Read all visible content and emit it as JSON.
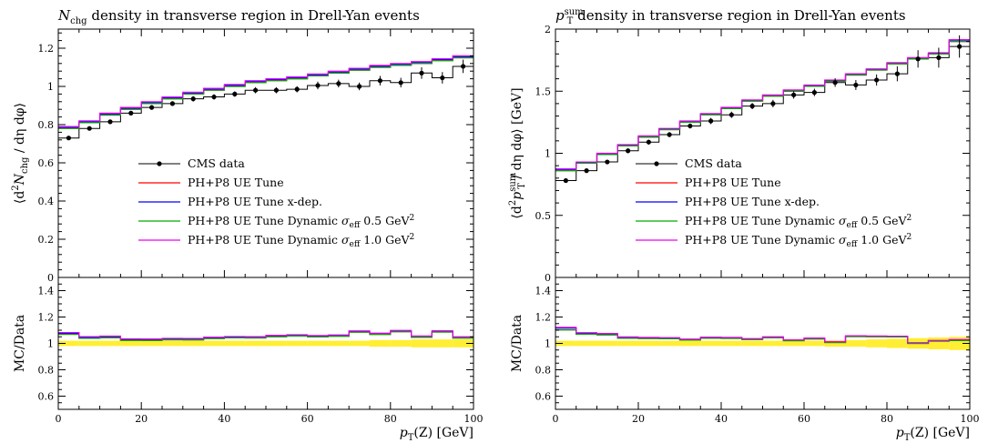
{
  "chart_data": [
    {
      "type": "line",
      "title": "N_chg density in transverse region in Drell-Yan events",
      "title_parts": {
        "base": "N",
        "sub": "chg",
        "rest": " density in transverse region in Drell-Yan events"
      },
      "xlabel": "pT(Z) [GeV]",
      "xlabel_parts": {
        "base": "p",
        "sub": "T",
        "rest": "(Z)  [GeV]"
      },
      "ylabel": "⟨d²N_chg / dη dφ⟩",
      "ylabel_parts": {
        "pre": "⟨d",
        "sup": "2",
        "mid": "N",
        "sub": "chg",
        "post": " / dη dφ⟩"
      },
      "ratio_ylabel": "MC/Data",
      "xlim": [
        0,
        100
      ],
      "ylim": [
        0,
        1.3
      ],
      "yticks": [
        0,
        0.2,
        0.4,
        0.6,
        0.8,
        1,
        1.2
      ],
      "ytick_labels": [
        "0",
        "0.2",
        "0.4",
        "0.6",
        "0.8",
        "1",
        "1.2"
      ],
      "ratio_ylim": [
        0.5,
        1.5
      ],
      "ratio_yticks": [
        0.6,
        0.8,
        1,
        1.2,
        1.4
      ],
      "ratio_ytick_labels": [
        "0.6",
        "0.8",
        "1",
        "1.2",
        "1.4"
      ],
      "xticks": [
        0,
        20,
        40,
        60,
        80,
        100
      ],
      "xtick_labels": [
        "0",
        "20",
        "40",
        "60",
        "80",
        "100"
      ],
      "bin_edges": [
        0,
        5,
        10,
        15,
        20,
        25,
        30,
        35,
        40,
        45,
        50,
        55,
        60,
        65,
        70,
        75,
        80,
        85,
        90,
        95,
        100
      ],
      "legend_position": "lower-middle",
      "data": {
        "name": "CMS data",
        "x": [
          2.5,
          7.5,
          12.5,
          17.5,
          22.5,
          27.5,
          32.5,
          37.5,
          42.5,
          47.5,
          52.5,
          57.5,
          62.5,
          67.5,
          72.5,
          77.5,
          82.5,
          87.5,
          92.5,
          97.5
        ],
        "y": [
          0.73,
          0.78,
          0.815,
          0.86,
          0.89,
          0.91,
          0.935,
          0.945,
          0.96,
          0.98,
          0.98,
          0.985,
          1.005,
          1.015,
          1.0,
          1.03,
          1.02,
          1.07,
          1.045,
          1.105
        ],
        "err": [
          0.01,
          0.01,
          0.01,
          0.012,
          0.012,
          0.012,
          0.014,
          0.014,
          0.014,
          0.016,
          0.016,
          0.016,
          0.02,
          0.02,
          0.02,
          0.025,
          0.025,
          0.03,
          0.03,
          0.035
        ],
        "color": "#000000"
      },
      "series": [
        {
          "name": "PH+P8 UE Tune",
          "color": "#ff0000",
          "values": [
            0.78,
            0.81,
            0.85,
            0.88,
            0.91,
            0.935,
            0.96,
            0.98,
            1.0,
            1.02,
            1.03,
            1.04,
            1.055,
            1.07,
            1.085,
            1.1,
            1.11,
            1.12,
            1.135,
            1.15
          ]
        },
        {
          "name": "PH+P8 UE Tune x-dep.",
          "color": "#0000ff",
          "values": [
            0.785,
            0.815,
            0.855,
            0.885,
            0.915,
            0.94,
            0.965,
            0.985,
            1.005,
            1.025,
            1.035,
            1.045,
            1.06,
            1.075,
            1.09,
            1.105,
            1.115,
            1.125,
            1.14,
            1.155
          ]
        },
        {
          "name": "PH+P8 UE Tune Dynamic σ_eff 0.5 GeV²",
          "name_parts": {
            "pre": "PH+P8 UE Tune Dynamic σ",
            "sub": "eff",
            "mid": " 0.5 GeV",
            "sup": "2"
          },
          "color": "#00aa00",
          "values": [
            0.78,
            0.81,
            0.85,
            0.88,
            0.91,
            0.935,
            0.96,
            0.98,
            1.0,
            1.02,
            1.03,
            1.04,
            1.055,
            1.07,
            1.085,
            1.1,
            1.11,
            1.12,
            1.135,
            1.15
          ]
        },
        {
          "name": "PH+P8 UE Tune Dynamic σ_eff 1.0 GeV²",
          "name_parts": {
            "pre": "PH+P8 UE Tune Dynamic σ",
            "sub": "eff",
            "mid": " 1.0 GeV",
            "sup": "2"
          },
          "color": "#ee00ee",
          "values": [
            0.79,
            0.82,
            0.86,
            0.89,
            0.92,
            0.945,
            0.97,
            0.99,
            1.01,
            1.03,
            1.04,
            1.05,
            1.065,
            1.08,
            1.095,
            1.11,
            1.12,
            1.13,
            1.145,
            1.16
          ]
        }
      ],
      "ratio_band_halfwidth": [
        0.02,
        0.02,
        0.02,
        0.02,
        0.02,
        0.02,
        0.02,
        0.02,
        0.02,
        0.02,
        0.02,
        0.02,
        0.02,
        0.02,
        0.02,
        0.025,
        0.025,
        0.03,
        0.03,
        0.03
      ]
    },
    {
      "type": "line",
      "title": "pT^sum density in transverse region in Drell-Yan events",
      "title_parts": {
        "base": "p",
        "sub": "T",
        "sup": "sum",
        "rest": " density in transverse region in Drell-Yan events"
      },
      "xlabel": "pT(Z) [GeV]",
      "xlabel_parts": {
        "base": "p",
        "sub": "T",
        "rest": "(Z)  [GeV]"
      },
      "ylabel": "⟨d²pT^sum / dη dφ⟩ [GeV]",
      "ylabel_parts": {
        "pre": "⟨d",
        "sup": "2",
        "mid": "p",
        "sub": "T",
        "sup2": "sum",
        "post": " / dη dφ⟩  [GeV]"
      },
      "ratio_ylabel": "MC/Data",
      "xlim": [
        0,
        100
      ],
      "ylim": [
        0,
        2
      ],
      "yticks": [
        0,
        0.5,
        1,
        1.5,
        2
      ],
      "ytick_labels": [
        "0",
        "0.5",
        "1",
        "1.5",
        "2"
      ],
      "ratio_ylim": [
        0.5,
        1.5
      ],
      "ratio_yticks": [
        0.6,
        0.8,
        1,
        1.2,
        1.4
      ],
      "ratio_ytick_labels": [
        "0.6",
        "0.8",
        "1",
        "1.2",
        "1.4"
      ],
      "xticks": [
        0,
        20,
        40,
        60,
        80,
        100
      ],
      "xtick_labels": [
        "0",
        "20",
        "40",
        "60",
        "80",
        "100"
      ],
      "bin_edges": [
        0,
        5,
        10,
        15,
        20,
        25,
        30,
        35,
        40,
        45,
        50,
        55,
        60,
        65,
        70,
        75,
        80,
        85,
        90,
        95,
        100
      ],
      "legend_position": "lower-middle",
      "data": {
        "name": "CMS data",
        "x": [
          2.5,
          7.5,
          12.5,
          17.5,
          22.5,
          27.5,
          32.5,
          37.5,
          42.5,
          47.5,
          52.5,
          57.5,
          62.5,
          67.5,
          72.5,
          77.5,
          82.5,
          87.5,
          92.5,
          97.5
        ],
        "y": [
          0.78,
          0.86,
          0.93,
          1.02,
          1.09,
          1.15,
          1.22,
          1.26,
          1.31,
          1.38,
          1.4,
          1.47,
          1.49,
          1.57,
          1.55,
          1.59,
          1.64,
          1.76,
          1.77,
          1.86
        ],
        "err": [
          0.015,
          0.015,
          0.015,
          0.02,
          0.02,
          0.02,
          0.02,
          0.025,
          0.025,
          0.025,
          0.03,
          0.03,
          0.03,
          0.035,
          0.04,
          0.045,
          0.06,
          0.07,
          0.08,
          0.09
        ],
        "color": "#000000"
      },
      "series": [
        {
          "name": "PH+P8 UE Tune",
          "color": "#ff0000",
          "values": [
            0.86,
            0.92,
            0.99,
            1.06,
            1.13,
            1.19,
            1.25,
            1.31,
            1.36,
            1.42,
            1.46,
            1.5,
            1.54,
            1.58,
            1.63,
            1.67,
            1.72,
            1.76,
            1.8,
            1.9
          ]
        },
        {
          "name": "PH+P8 UE Tune x-dep.",
          "color": "#0000ff",
          "values": [
            0.87,
            0.925,
            0.995,
            1.065,
            1.135,
            1.195,
            1.255,
            1.315,
            1.365,
            1.425,
            1.465,
            1.505,
            1.545,
            1.585,
            1.635,
            1.675,
            1.725,
            1.765,
            1.805,
            1.905
          ]
        },
        {
          "name": "PH+P8 UE Tune Dynamic σ_eff 0.5 GeV²",
          "name_parts": {
            "pre": "PH+P8 UE Tune Dynamic σ",
            "sub": "eff",
            "mid": " 0.5 GeV",
            "sup": "2"
          },
          "color": "#00aa00",
          "values": [
            0.86,
            0.92,
            0.99,
            1.06,
            1.13,
            1.19,
            1.25,
            1.31,
            1.36,
            1.42,
            1.46,
            1.5,
            1.54,
            1.58,
            1.63,
            1.67,
            1.72,
            1.76,
            1.8,
            1.9
          ]
        },
        {
          "name": "PH+P8 UE Tune Dynamic σ_eff 1.0 GeV²",
          "name_parts": {
            "pre": "PH+P8 UE Tune Dynamic σ",
            "sub": "eff",
            "mid": " 1.0 GeV",
            "sup": "2"
          },
          "color": "#ee00ee",
          "values": [
            0.875,
            0.93,
            1.0,
            1.07,
            1.14,
            1.2,
            1.26,
            1.32,
            1.37,
            1.43,
            1.47,
            1.51,
            1.55,
            1.59,
            1.64,
            1.68,
            1.73,
            1.77,
            1.81,
            1.915
          ]
        }
      ],
      "ratio_band_halfwidth": [
        0.02,
        0.02,
        0.02,
        0.02,
        0.02,
        0.02,
        0.02,
        0.02,
        0.02,
        0.02,
        0.02,
        0.02,
        0.02,
        0.025,
        0.025,
        0.03,
        0.035,
        0.04,
        0.045,
        0.05
      ]
    }
  ]
}
